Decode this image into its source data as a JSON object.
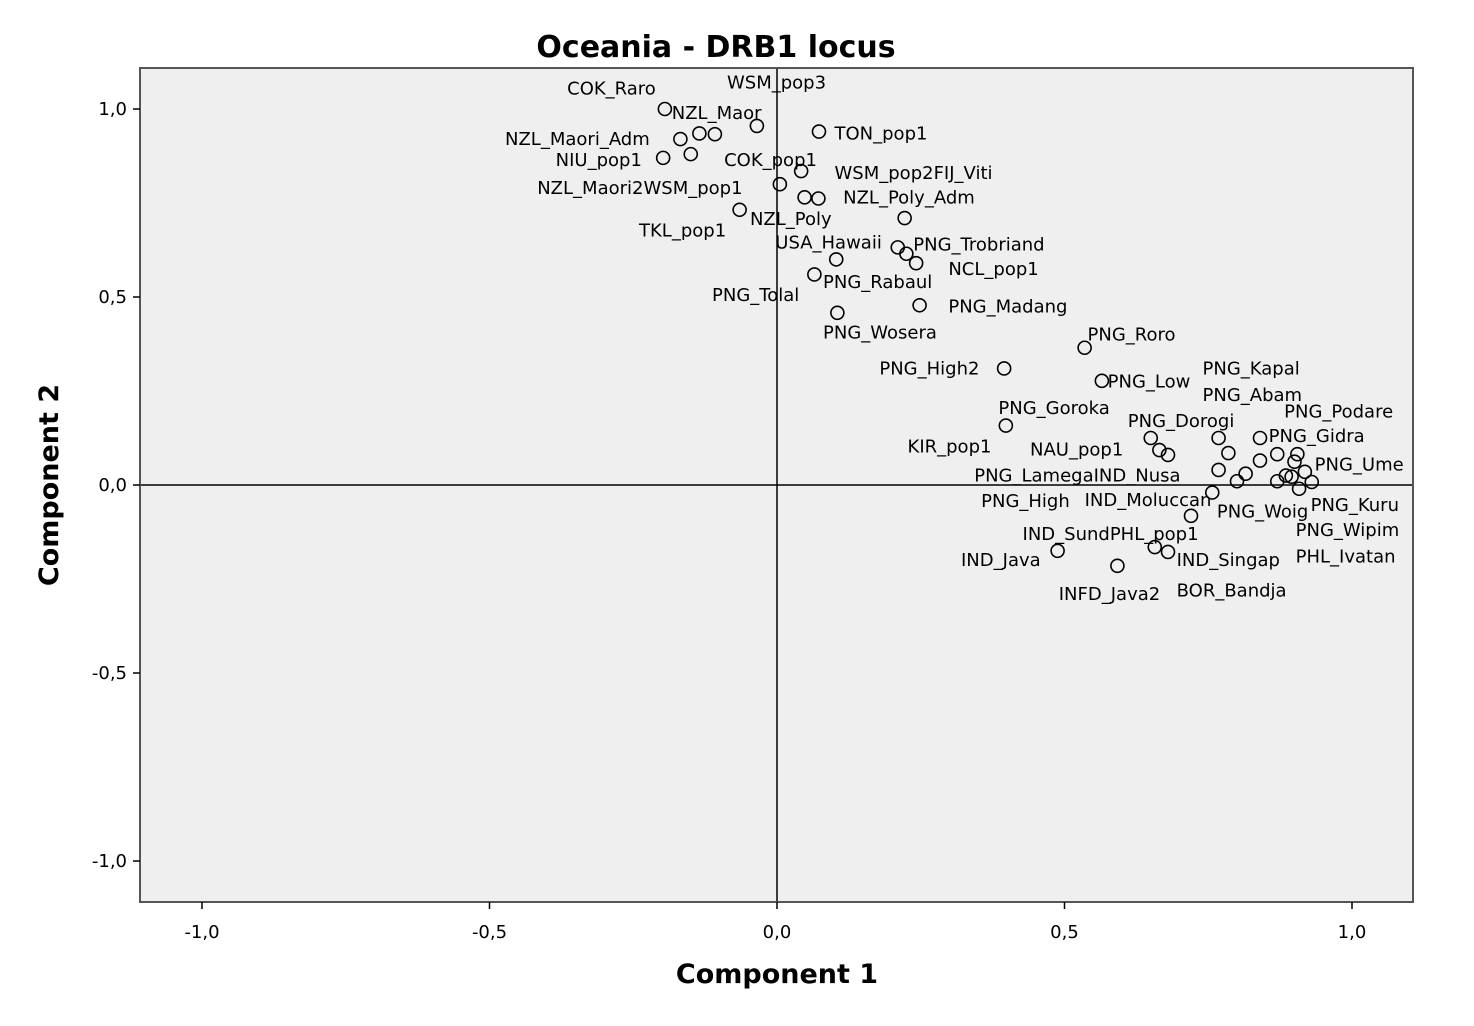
{
  "chart_data": {
    "type": "scatter",
    "title": "Oceania - DRB1 locus",
    "xlabel": "Component 1",
    "ylabel": "Component 2",
    "xlim": [
      -1.1,
      1.1
    ],
    "ylim": [
      -1.1,
      1.1
    ],
    "x_ticks": [
      {
        "value": -1.0,
        "label": "-1,0"
      },
      {
        "value": -0.5,
        "label": "-0,5"
      },
      {
        "value": 0.0,
        "label": "0,0"
      },
      {
        "value": 0.5,
        "label": "0,5"
      },
      {
        "value": 1.0,
        "label": "1,0"
      }
    ],
    "y_ticks": [
      {
        "value": 1.0,
        "label": "1,0"
      },
      {
        "value": 0.5,
        "label": "0,5"
      },
      {
        "value": 0.0,
        "label": "0,0"
      },
      {
        "value": -0.5,
        "label": "-0,5"
      },
      {
        "value": -1.0,
        "label": "-1,0"
      }
    ],
    "reference_lines": {
      "x": 0,
      "y": 0
    },
    "grid": false,
    "plot_background": "#efefef",
    "marker": "open-circle",
    "points": [
      {
        "x": -0.195,
        "y": 1.0
      },
      {
        "x": -0.168,
        "y": 0.92
      },
      {
        "x": -0.135,
        "y": 0.935
      },
      {
        "x": -0.108,
        "y": 0.933
      },
      {
        "x": -0.035,
        "y": 0.955
      },
      {
        "x": -0.198,
        "y": 0.87
      },
      {
        "x": -0.15,
        "y": 0.88
      },
      {
        "x": 0.073,
        "y": 0.94
      },
      {
        "x": 0.042,
        "y": 0.835
      },
      {
        "x": 0.005,
        "y": 0.8
      },
      {
        "x": 0.048,
        "y": 0.765
      },
      {
        "x": 0.072,
        "y": 0.762
      },
      {
        "x": -0.065,
        "y": 0.732
      },
      {
        "x": 0.222,
        "y": 0.71
      },
      {
        "x": 0.21,
        "y": 0.632
      },
      {
        "x": 0.225,
        "y": 0.615
      },
      {
        "x": 0.242,
        "y": 0.59
      },
      {
        "x": 0.103,
        "y": 0.6
      },
      {
        "x": 0.065,
        "y": 0.56
      },
      {
        "x": 0.248,
        "y": 0.478
      },
      {
        "x": 0.105,
        "y": 0.458
      },
      {
        "x": 0.535,
        "y": 0.365
      },
      {
        "x": 0.395,
        "y": 0.31
      },
      {
        "x": 0.565,
        "y": 0.277
      },
      {
        "x": 0.398,
        "y": 0.158
      },
      {
        "x": 0.65,
        "y": 0.125
      },
      {
        "x": 0.665,
        "y": 0.093
      },
      {
        "x": 0.68,
        "y": 0.08
      },
      {
        "x": 0.768,
        "y": 0.125
      },
      {
        "x": 0.785,
        "y": 0.085
      },
      {
        "x": 0.84,
        "y": 0.125
      },
      {
        "x": 0.87,
        "y": 0.082
      },
      {
        "x": 0.905,
        "y": 0.082
      },
      {
        "x": 0.9,
        "y": 0.062
      },
      {
        "x": 0.84,
        "y": 0.065
      },
      {
        "x": 0.768,
        "y": 0.04
      },
      {
        "x": 0.815,
        "y": 0.03
      },
      {
        "x": 0.8,
        "y": 0.01
      },
      {
        "x": 0.87,
        "y": 0.01
      },
      {
        "x": 0.885,
        "y": 0.025
      },
      {
        "x": 0.895,
        "y": 0.022
      },
      {
        "x": 0.918,
        "y": 0.035
      },
      {
        "x": 0.93,
        "y": 0.008
      },
      {
        "x": 0.908,
        "y": -0.01
      },
      {
        "x": 0.757,
        "y": -0.02
      },
      {
        "x": 0.72,
        "y": -0.082
      },
      {
        "x": 0.488,
        "y": -0.175
      },
      {
        "x": 0.657,
        "y": -0.165
      },
      {
        "x": 0.68,
        "y": -0.178
      },
      {
        "x": 0.592,
        "y": -0.215
      }
    ],
    "labels": [
      {
        "text": "WSM_pop3",
        "x": -0.087,
        "y": 1.07
      },
      {
        "text": "COK_Raro",
        "x": -0.365,
        "y": 1.055
      },
      {
        "text": "NZL_Maor",
        "x": -0.183,
        "y": 0.99
      },
      {
        "text": "NZL_Maori_Adm",
        "x": -0.473,
        "y": 0.92
      },
      {
        "text": "TON_pop1",
        "x": 0.1,
        "y": 0.935
      },
      {
        "text": "COK_pop1",
        "x": -0.092,
        "y": 0.865
      },
      {
        "text": "NIU_pop1",
        "x": -0.385,
        "y": 0.865
      },
      {
        "text": "WSM_pop2FIJ_Viti",
        "x": 0.1,
        "y": 0.83
      },
      {
        "text": "NZL_Maori2WSM_pop1",
        "x": -0.417,
        "y": 0.79
      },
      {
        "text": "NZL_Poly_Adm",
        "x": 0.115,
        "y": 0.765
      },
      {
        "text": "NZL_Poly",
        "x": -0.047,
        "y": 0.708
      },
      {
        "text": "TKL_pop1",
        "x": -0.24,
        "y": 0.677
      },
      {
        "text": "USA_Hawaii",
        "x": -0.003,
        "y": 0.645
      },
      {
        "text": "PNG_Trobriand",
        "x": 0.237,
        "y": 0.64
      },
      {
        "text": "NCL_pop1",
        "x": 0.298,
        "y": 0.575
      },
      {
        "text": "PNG_Rabaul",
        "x": 0.08,
        "y": 0.54
      },
      {
        "text": "PNG_Tolal",
        "x": -0.113,
        "y": 0.505
      },
      {
        "text": "PNG_Madang",
        "x": 0.298,
        "y": 0.475
      },
      {
        "text": "PNG_Wosera",
        "x": 0.08,
        "y": 0.405
      },
      {
        "text": "PNG_Roro",
        "x": 0.54,
        "y": 0.4
      },
      {
        "text": "PNG_Kapal",
        "x": 0.74,
        "y": 0.31
      },
      {
        "text": "PNG_High2",
        "x": 0.178,
        "y": 0.31
      },
      {
        "text": "PNG_Low",
        "x": 0.575,
        "y": 0.275
      },
      {
        "text": "PNG_Abam",
        "x": 0.74,
        "y": 0.24
      },
      {
        "text": "PNG_Podare",
        "x": 0.882,
        "y": 0.195
      },
      {
        "text": "PNG_Goroka",
        "x": 0.385,
        "y": 0.205
      },
      {
        "text": "PNG_Dorogi",
        "x": 0.61,
        "y": 0.17
      },
      {
        "text": "PNG_Gidra",
        "x": 0.855,
        "y": 0.13
      },
      {
        "text": "KIR_pop1",
        "x": 0.227,
        "y": 0.103
      },
      {
        "text": "NAU_pop1",
        "x": 0.44,
        "y": 0.095
      },
      {
        "text": "PNG_Ume",
        "x": 0.935,
        "y": 0.055
      },
      {
        "text": "PNG_LamegaIND_Nusa",
        "x": 0.343,
        "y": 0.025
      },
      {
        "text": "IND_Moluccan",
        "x": 0.535,
        "y": -0.04
      },
      {
        "text": "PNG_High",
        "x": 0.355,
        "y": -0.043
      },
      {
        "text": "PNG_Kuru",
        "x": 0.928,
        "y": -0.053
      },
      {
        "text": "PNG_Woig",
        "x": 0.765,
        "y": -0.07
      },
      {
        "text": "IND_SundPHL_pop1",
        "x": 0.427,
        "y": -0.13
      },
      {
        "text": "PNG_Wipim",
        "x": 0.902,
        "y": -0.12
      },
      {
        "text": "PHL_Ivatan",
        "x": 0.902,
        "y": -0.19
      },
      {
        "text": "IND_Java",
        "x": 0.32,
        "y": -0.2
      },
      {
        "text": "IND_Singap",
        "x": 0.695,
        "y": -0.2
      },
      {
        "text": "BOR_Bandja",
        "x": 0.695,
        "y": -0.28
      },
      {
        "text": "INFD_Java2",
        "x": 0.49,
        "y": -0.29
      }
    ]
  }
}
